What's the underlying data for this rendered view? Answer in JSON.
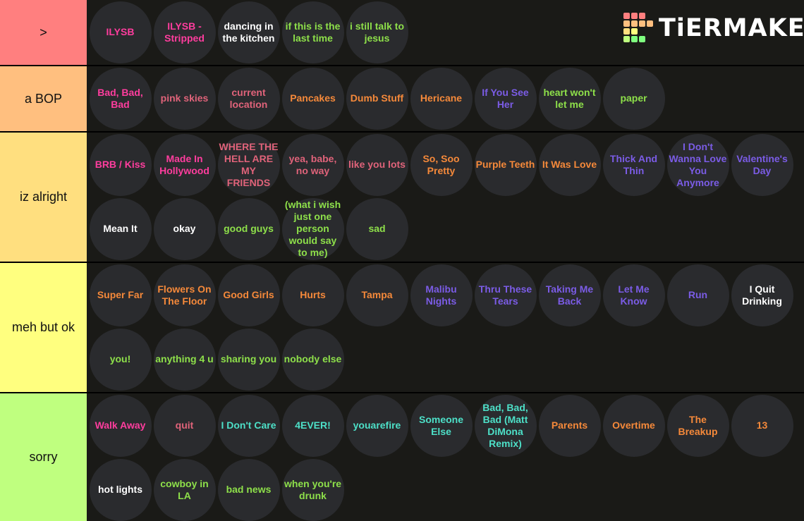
{
  "logo": "TiERMAKER",
  "tiers": [
    {
      "label": ">",
      "color": "#ff7f7f",
      "items": [
        {
          "text": "ILYSB",
          "color": "#ff3d9e"
        },
        {
          "text": "ILYSB - Stripped",
          "color": "#ff3d9e"
        },
        {
          "text": "dancing in the kitchen",
          "color": "#ffffff"
        },
        {
          "text": "if this is the last time",
          "color": "#8ee04a"
        },
        {
          "text": "i still talk to jesus",
          "color": "#8ee04a"
        }
      ]
    },
    {
      "label": "a BOP",
      "color": "#ffbf7f",
      "items": [
        {
          "text": "Bad, Bad, Bad",
          "color": "#ff3d9e"
        },
        {
          "text": "pink skies",
          "color": "#e0637a"
        },
        {
          "text": "current location",
          "color": "#e0637a"
        },
        {
          "text": "Pancakes",
          "color": "#f5893a"
        },
        {
          "text": "Dumb Stuff",
          "color": "#f5893a"
        },
        {
          "text": "Hericane",
          "color": "#f5893a"
        },
        {
          "text": "If You See Her",
          "color": "#7b5ce6"
        },
        {
          "text": "heart won't let me",
          "color": "#8ee04a"
        },
        {
          "text": "paper",
          "color": "#8ee04a"
        }
      ]
    },
    {
      "label": "iz alright",
      "color": "#ffdf7f",
      "items": [
        {
          "text": "BRB / Kiss",
          "color": "#ff3d9e"
        },
        {
          "text": "Made In Hollywood",
          "color": "#ff3d9e"
        },
        {
          "text": "WHERE THE HELL ARE MY FRIENDS",
          "color": "#e0637a"
        },
        {
          "text": "yea, babe, no way",
          "color": "#e0637a"
        },
        {
          "text": "like you lots",
          "color": "#e0637a"
        },
        {
          "text": "So, Soo Pretty",
          "color": "#f5893a"
        },
        {
          "text": "Purple Teeth",
          "color": "#f5893a"
        },
        {
          "text": "It Was Love",
          "color": "#f5893a"
        },
        {
          "text": "Thick And Thin",
          "color": "#7b5ce6"
        },
        {
          "text": "I Don't Wanna Love You Anymore",
          "color": "#7b5ce6"
        },
        {
          "text": "Valentine's Day",
          "color": "#7b5ce6"
        },
        {
          "text": "Mean It",
          "color": "#ffffff"
        },
        {
          "text": "okay",
          "color": "#ffffff"
        },
        {
          "text": "good guys",
          "color": "#8ee04a"
        },
        {
          "text": "(what i wish just one person would say to me)",
          "color": "#8ee04a"
        },
        {
          "text": "sad",
          "color": "#8ee04a"
        }
      ]
    },
    {
      "label": "meh but ok",
      "color": "#ffff7f",
      "items": [
        {
          "text": "Super Far",
          "color": "#f5893a"
        },
        {
          "text": "Flowers On The Floor",
          "color": "#f5893a"
        },
        {
          "text": "Good Girls",
          "color": "#f5893a"
        },
        {
          "text": "Hurts",
          "color": "#f5893a"
        },
        {
          "text": "Tampa",
          "color": "#f5893a"
        },
        {
          "text": "Malibu Nights",
          "color": "#7b5ce6"
        },
        {
          "text": "Thru These Tears",
          "color": "#7b5ce6"
        },
        {
          "text": "Taking Me Back",
          "color": "#7b5ce6"
        },
        {
          "text": "Let Me Know",
          "color": "#7b5ce6"
        },
        {
          "text": "Run",
          "color": "#7b5ce6"
        },
        {
          "text": "I Quit Drinking",
          "color": "#ffffff"
        },
        {
          "text": "you!",
          "color": "#8ee04a"
        },
        {
          "text": "anything 4 u",
          "color": "#8ee04a"
        },
        {
          "text": "sharing you",
          "color": "#8ee04a"
        },
        {
          "text": "nobody else",
          "color": "#8ee04a"
        }
      ]
    },
    {
      "label": "sorry",
      "color": "#bfff7f",
      "items": [
        {
          "text": "Walk Away",
          "color": "#ff3d9e"
        },
        {
          "text": "quit",
          "color": "#e0637a"
        },
        {
          "text": "I Don't Care",
          "color": "#4de0c8"
        },
        {
          "text": "4EVER!",
          "color": "#4de0c8"
        },
        {
          "text": "youarefire",
          "color": "#4de0c8"
        },
        {
          "text": "Someone Else",
          "color": "#4de0c8"
        },
        {
          "text": "Bad, Bad, Bad (Matt DiMona Remix)",
          "color": "#4de0c8"
        },
        {
          "text": "Parents",
          "color": "#f5893a"
        },
        {
          "text": "Overtime",
          "color": "#f5893a"
        },
        {
          "text": "The Breakup",
          "color": "#f5893a"
        },
        {
          "text": "13",
          "color": "#f5893a"
        },
        {
          "text": "hot lights",
          "color": "#ffffff"
        },
        {
          "text": "cowboy in LA",
          "color": "#8ee04a"
        },
        {
          "text": "bad news",
          "color": "#8ee04a"
        },
        {
          "text": "when you're drunk",
          "color": "#8ee04a"
        }
      ]
    }
  ]
}
